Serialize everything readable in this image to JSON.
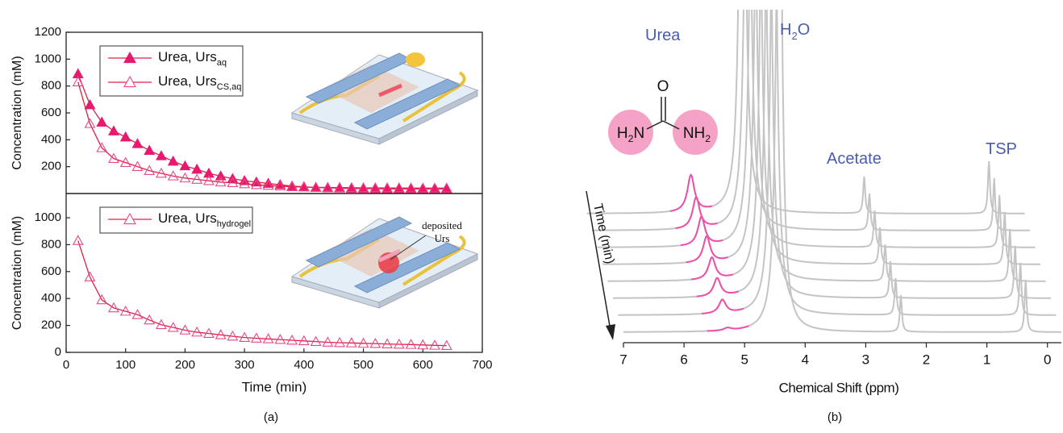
{
  "chart_data": [
    {
      "type": "scatter",
      "ylabel": "Concentration (mM)",
      "xlim": [
        0,
        700
      ],
      "ylim": [
        0,
        1200
      ],
      "yticks": [
        200,
        400,
        600,
        800,
        1000,
        1200
      ],
      "line_color": "#e02040",
      "x": [
        20,
        40,
        60,
        80,
        100,
        120,
        140,
        160,
        180,
        200,
        220,
        240,
        260,
        280,
        300,
        320,
        340,
        360,
        380,
        400,
        420,
        440,
        460,
        480,
        500,
        520,
        540,
        560,
        580,
        600,
        620,
        640
      ],
      "series": [
        {
          "name": "Urea, Urs",
          "name_subscript": "aq",
          "color": "#e8196e",
          "filled": true,
          "values": [
            890,
            660,
            530,
            465,
            420,
            370,
            320,
            280,
            240,
            205,
            180,
            150,
            130,
            110,
            95,
            85,
            75,
            65,
            55,
            50,
            45,
            42,
            40,
            38,
            37,
            36,
            35,
            35,
            35,
            35,
            35,
            35
          ]
        },
        {
          "name": "Urea, Urs",
          "name_subscript": "CS,aq",
          "color": "#e8478c",
          "filled": false,
          "values": [
            830,
            520,
            340,
            260,
            230,
            200,
            170,
            150,
            130,
            115,
            105,
            95,
            85,
            80,
            72,
            65,
            60,
            55,
            50,
            48,
            46,
            45,
            44,
            43,
            42,
            42,
            41,
            41,
            40,
            40,
            40,
            40
          ]
        }
      ]
    },
    {
      "type": "scatter",
      "xlabel": "Time (min)",
      "ylabel": "Concentration (mM)",
      "xlim": [
        0,
        700
      ],
      "xticks": [
        0,
        100,
        200,
        300,
        400,
        500,
        600,
        700
      ],
      "ylim": [
        0,
        1180
      ],
      "yticks": [
        0,
        200,
        400,
        600,
        800,
        1000
      ],
      "line_color": "#e02040",
      "x": [
        20,
        40,
        60,
        80,
        100,
        120,
        140,
        160,
        180,
        200,
        220,
        240,
        260,
        280,
        300,
        320,
        340,
        360,
        380,
        400,
        420,
        440,
        460,
        480,
        500,
        520,
        540,
        560,
        580,
        600,
        620,
        640
      ],
      "series": [
        {
          "name": "Urea, Urs",
          "name_subscript": "hydrogel",
          "color": "#e8478c",
          "filled": false,
          "values": [
            830,
            560,
            390,
            330,
            305,
            280,
            240,
            205,
            185,
            165,
            150,
            140,
            130,
            120,
            110,
            105,
            100,
            95,
            90,
            85,
            80,
            75,
            72,
            70,
            67,
            65,
            62,
            60,
            58,
            55,
            52,
            50
          ]
        }
      ],
      "annotation": [
        "deposited",
        "Urs"
      ],
      "panel_label": "(a)"
    },
    {
      "type": "spectra",
      "xlabel": "Chemical Shift  (ppm)",
      "xlim": [
        7,
        -0.23
      ],
      "xticks": [
        7,
        6,
        5,
        4,
        3,
        2,
        1,
        0
      ],
      "color": "#c4c4c4",
      "highlight_color": "#ee4fa8",
      "label_color": "#4a5cae",
      "peaks": [
        {
          "label": "Urea",
          "ppm": 5.28,
          "width": 0.07
        },
        {
          "label": "H",
          "label_subscript": "2",
          "label_suffix": "O",
          "ppm": 4.43,
          "width": 0.05,
          "intensity": 12
        },
        {
          "label": "Acetate",
          "ppm": 2.42,
          "width": 0.02,
          "intensity": 0.7
        },
        {
          "label": "TSP",
          "ppm": 0.36,
          "width": 0.02,
          "intensity": 1.0
        }
      ],
      "urea_intensity": [
        0.7,
        0.6,
        0.55,
        0.5,
        0.42,
        0.35,
        0.26,
        0.05
      ],
      "arrow_label": "Time (min)",
      "molecule": {
        "top": "O",
        "left": [
          "H",
          "2",
          "N"
        ],
        "right": [
          "NH",
          "2"
        ]
      },
      "panel_label": "(b)"
    }
  ]
}
